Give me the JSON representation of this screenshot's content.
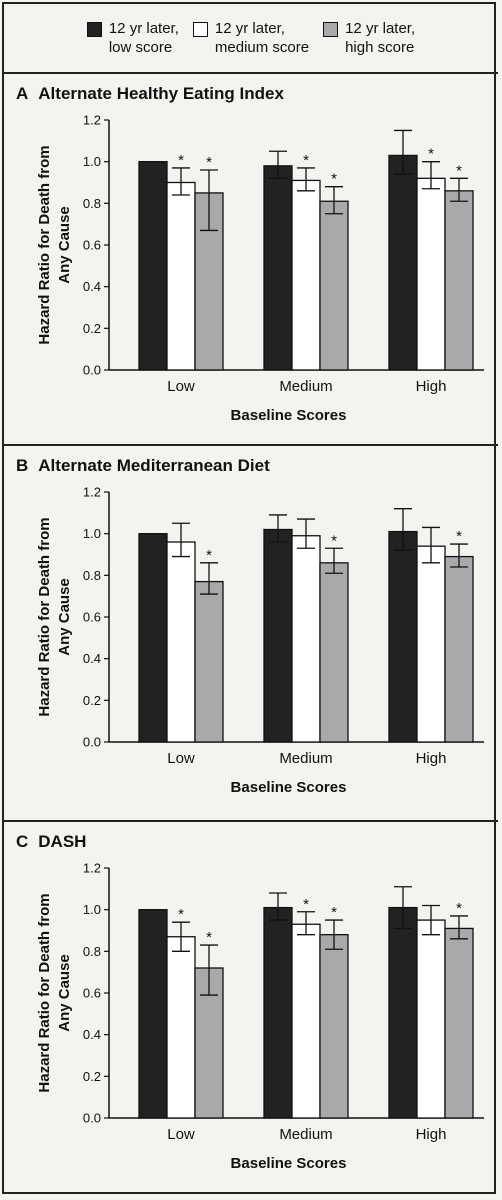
{
  "legend": [
    {
      "line1": "12 yr later,",
      "line2": "low score",
      "color": "#222222"
    },
    {
      "line1": "12 yr later,",
      "line2": "medium score",
      "color": "#ffffff"
    },
    {
      "line1": "12 yr later,",
      "line2": "high score",
      "color": "#a9a9ab"
    }
  ],
  "chart_data": [
    {
      "type": "bar",
      "letter": "A",
      "title": "Alternate Healthy Eating Index",
      "ylabel_line1": "Hazard Ratio for Death from",
      "ylabel_line2": "Any Cause",
      "xlabel": "Baseline Scores",
      "ylim": [
        0,
        1.2
      ],
      "yticks": [
        "0.0",
        "0.2",
        "0.4",
        "0.6",
        "0.8",
        "1.0",
        "1.2"
      ],
      "categories": [
        "Low",
        "Medium",
        "High"
      ],
      "series": [
        {
          "name": "12 yr later, low score",
          "values": [
            1.0,
            0.98,
            1.03
          ],
          "lower": [
            1.0,
            0.92,
            0.94
          ],
          "upper": [
            1.0,
            1.05,
            1.15
          ],
          "sig": [
            false,
            false,
            false
          ]
        },
        {
          "name": "12 yr later, medium score",
          "values": [
            0.9,
            0.91,
            0.92
          ],
          "lower": [
            0.84,
            0.86,
            0.87
          ],
          "upper": [
            0.97,
            0.97,
            1.0
          ],
          "sig": [
            true,
            true,
            true
          ]
        },
        {
          "name": "12 yr later, high score",
          "values": [
            0.85,
            0.81,
            0.86
          ],
          "lower": [
            0.67,
            0.75,
            0.81
          ],
          "upper": [
            0.96,
            0.88,
            0.92
          ],
          "sig": [
            true,
            true,
            true
          ]
        }
      ]
    },
    {
      "type": "bar",
      "letter": "B",
      "title": "Alternate Mediterranean Diet",
      "ylabel_line1": "Hazard Ratio for Death from",
      "ylabel_line2": "Any Cause",
      "xlabel": "Baseline Scores",
      "ylim": [
        0,
        1.2
      ],
      "yticks": [
        "0.0",
        "0.2",
        "0.4",
        "0.6",
        "0.8",
        "1.0",
        "1.2"
      ],
      "categories": [
        "Low",
        "Medium",
        "High"
      ],
      "series": [
        {
          "name": "12 yr later, low score",
          "values": [
            1.0,
            1.02,
            1.01
          ],
          "lower": [
            1.0,
            0.96,
            0.92
          ],
          "upper": [
            1.0,
            1.09,
            1.12
          ],
          "sig": [
            false,
            false,
            false
          ]
        },
        {
          "name": "12 yr later, medium score",
          "values": [
            0.96,
            0.99,
            0.94
          ],
          "lower": [
            0.89,
            0.93,
            0.86
          ],
          "upper": [
            1.05,
            1.07,
            1.03
          ],
          "sig": [
            false,
            false,
            false
          ]
        },
        {
          "name": "12 yr later, high score",
          "values": [
            0.77,
            0.86,
            0.89
          ],
          "lower": [
            0.71,
            0.81,
            0.84
          ],
          "upper": [
            0.86,
            0.93,
            0.95
          ],
          "sig": [
            true,
            true,
            true
          ]
        }
      ]
    },
    {
      "type": "bar",
      "letter": "C",
      "title": "DASH",
      "ylabel_line1": "Hazard Ratio for Death from",
      "ylabel_line2": "Any Cause",
      "xlabel": "Baseline Scores",
      "ylim": [
        0,
        1.2
      ],
      "yticks": [
        "0.0",
        "0.2",
        "0.4",
        "0.6",
        "0.8",
        "1.0",
        "1.2"
      ],
      "categories": [
        "Low",
        "Medium",
        "High"
      ],
      "series": [
        {
          "name": "12 yr later, low score",
          "values": [
            1.0,
            1.01,
            1.01
          ],
          "lower": [
            1.0,
            0.95,
            0.91
          ],
          "upper": [
            1.0,
            1.08,
            1.11
          ],
          "sig": [
            false,
            false,
            false
          ]
        },
        {
          "name": "12 yr later, medium score",
          "values": [
            0.87,
            0.93,
            0.95
          ],
          "lower": [
            0.8,
            0.88,
            0.88
          ],
          "upper": [
            0.94,
            0.99,
            1.02
          ],
          "sig": [
            true,
            true,
            false
          ]
        },
        {
          "name": "12 yr later, high score",
          "values": [
            0.72,
            0.88,
            0.91
          ],
          "lower": [
            0.59,
            0.81,
            0.86
          ],
          "upper": [
            0.83,
            0.95,
            0.97
          ],
          "sig": [
            true,
            true,
            true
          ]
        }
      ]
    }
  ]
}
